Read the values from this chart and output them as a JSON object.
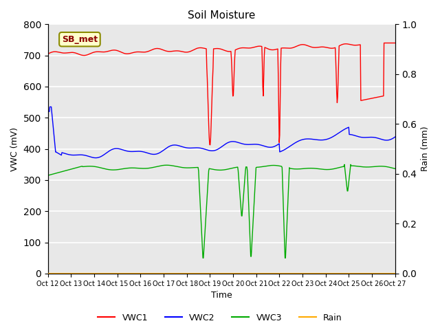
{
  "title": "Soil Moisture",
  "xlabel": "Time",
  "ylabel_left": "VWC (mV)",
  "ylabel_right": "Rain (mm)",
  "ylim_left": [
    0,
    800
  ],
  "ylim_right": [
    0,
    1.0
  ],
  "yticks_left": [
    0,
    100,
    200,
    300,
    400,
    500,
    600,
    700,
    800
  ],
  "yticks_right": [
    0.0,
    0.2,
    0.4,
    0.6,
    0.8,
    1.0
  ],
  "xtick_labels": [
    "Oct 12",
    "Oct 13",
    "Oct 14",
    "Oct 15",
    "Oct 16",
    "Oct 17",
    "Oct 18",
    "Oct 19",
    "Oct 20",
    "Oct 21",
    "Oct 22",
    "Oct 23",
    "Oct 24",
    "Oct 25",
    "Oct 26",
    "Oct 27"
  ],
  "background_color": "#e8e8e8",
  "grid_color": "#ffffff",
  "annotation_text": "SB_met",
  "annotation_color": "#8b0000",
  "annotation_bg": "#ffffcc",
  "annotation_border": "#8b8b00",
  "colors": {
    "VWC1": "#ff0000",
    "VWC2": "#0000ff",
    "VWC3": "#00aa00",
    "Rain": "#ffaa00"
  }
}
